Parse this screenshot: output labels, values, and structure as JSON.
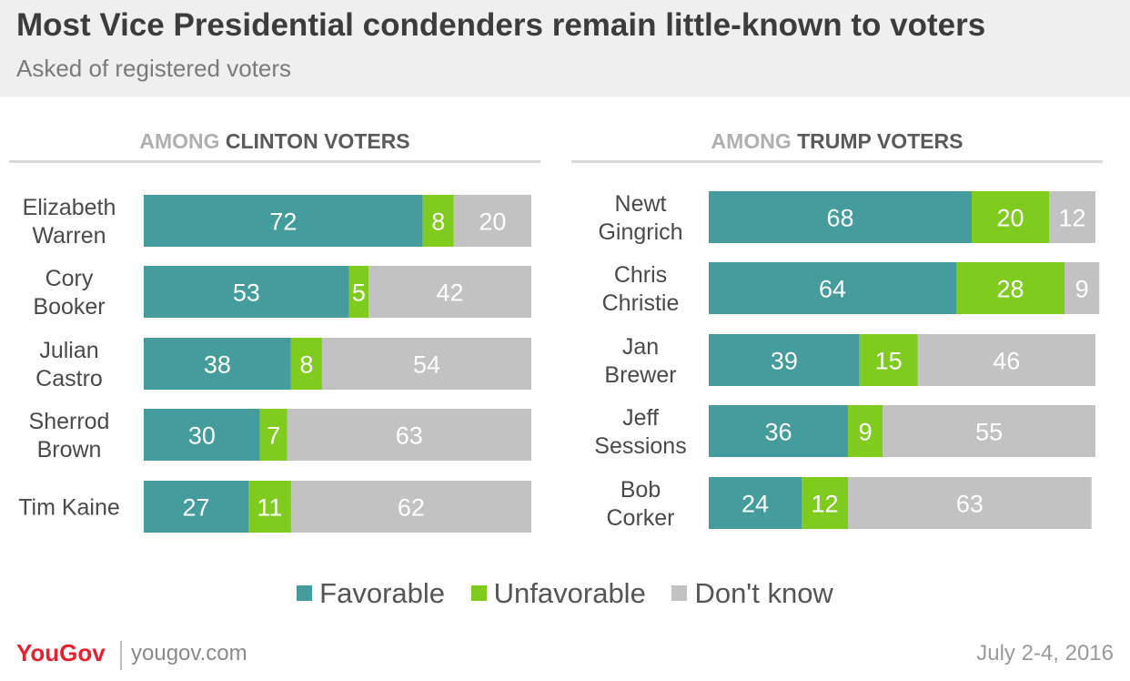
{
  "header": {
    "title": "Most Vice Presidential condenders remain little-known to voters",
    "subtitle": "Asked of registered voters"
  },
  "colors": {
    "favorable": "#449d9c",
    "unfavorable": "#7fcc1f",
    "dont_know": "#c2c2c2",
    "brand": "#e8212f"
  },
  "chart_data": [
    {
      "type": "bar",
      "orientation": "horizontal",
      "stacked": true,
      "heading_prefix": "AMONG",
      "heading_main": "CLINTON VOTERS",
      "categories": [
        [
          "Elizabeth",
          "Warren"
        ],
        [
          "Cory",
          "Booker"
        ],
        [
          "Julian",
          "Castro"
        ],
        [
          "Sherrod",
          "Brown"
        ],
        [
          "Tim Kaine"
        ]
      ],
      "series": [
        {
          "name": "Favorable",
          "values": [
            72,
            53,
            38,
            30,
            27
          ]
        },
        {
          "name": "Unfavorable",
          "values": [
            8,
            5,
            8,
            7,
            11
          ]
        },
        {
          "name": "Don't know",
          "values": [
            20,
            42,
            54,
            63,
            62
          ]
        }
      ],
      "xlim": [
        0,
        100
      ]
    },
    {
      "type": "bar",
      "orientation": "horizontal",
      "stacked": true,
      "heading_prefix": "AMONG",
      "heading_main": "TRUMP VOTERS",
      "categories": [
        [
          "Newt",
          "Gingrich"
        ],
        [
          "Chris",
          "Christie"
        ],
        [
          "Jan",
          "Brewer"
        ],
        [
          "Jeff",
          "Sessions"
        ],
        [
          "Bob",
          "Corker"
        ]
      ],
      "series": [
        {
          "name": "Favorable",
          "values": [
            68,
            64,
            39,
            36,
            24
          ]
        },
        {
          "name": "Unfavorable",
          "values": [
            20,
            28,
            15,
            9,
            12
          ]
        },
        {
          "name": "Don't know",
          "values": [
            12,
            9,
            46,
            55,
            63
          ]
        }
      ],
      "xlim": [
        0,
        100
      ]
    }
  ],
  "legend": {
    "placement": "bottom",
    "items": [
      "Favorable",
      "Unfavorable",
      "Don't know"
    ]
  },
  "footer": {
    "brand": "YouGov",
    "url": "yougov.com",
    "date": "July 2-4, 2016"
  }
}
